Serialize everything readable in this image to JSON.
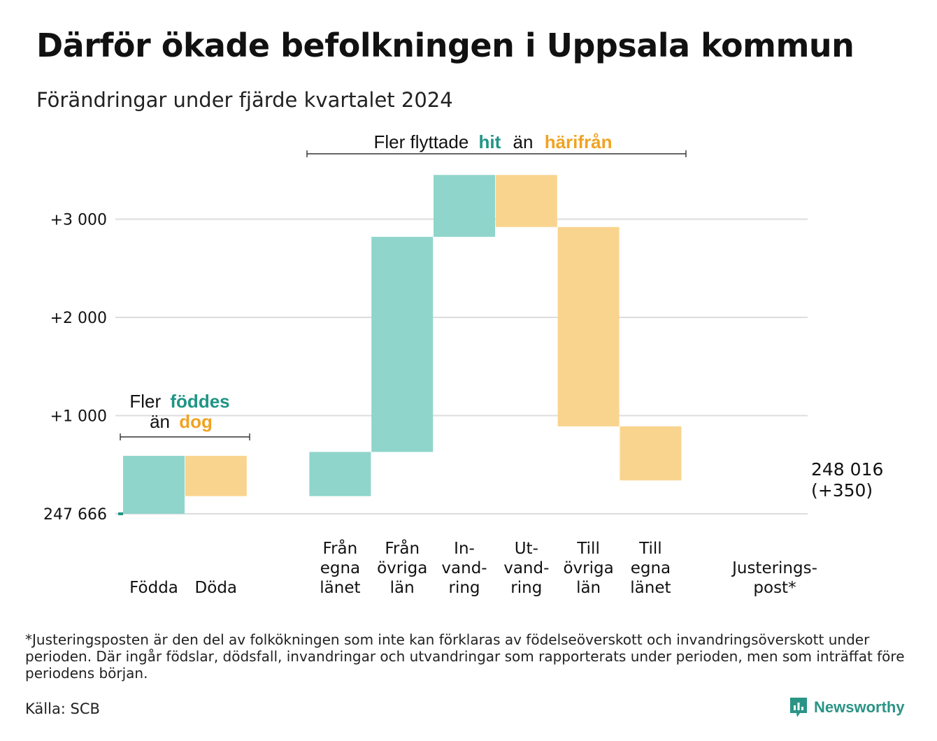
{
  "title": "Därför ökade befolkningen i Uppsala kommun",
  "subtitle": "Förändringar under fjärde kvartalet 2024",
  "colors": {
    "inflow_fill": "#8fd5cb",
    "outflow_fill": "#f9d48e",
    "line": "#1f9585",
    "inflow_text": "#1f9585",
    "outflow_text": "#f0a323",
    "gridline": "#dddddd"
  },
  "brackets": {
    "birth": {
      "line1_prefix": "Fler",
      "line1_highlight": "föddes",
      "line2_prefix": "än",
      "line2_highlight": "dog"
    },
    "migration": {
      "prefix": "Fler flyttade",
      "highlight_in": "hit",
      "middle": "än",
      "highlight_out": "härifrån"
    }
  },
  "chart_data": {
    "type": "waterfall",
    "baseline_label": "247 666",
    "start_value": 247666,
    "end_label_line1": "248 016",
    "end_label_line2": "(+350)",
    "y_ticks": [
      {
        "value": 1000,
        "label": "+1 000"
      },
      {
        "value": 2000,
        "label": "+2 000"
      },
      {
        "value": 3000,
        "label": "+3 000"
      }
    ],
    "ylim": [
      0,
      3450
    ],
    "categories": [
      {
        "label_lines": [
          "Födda"
        ],
        "change": 590,
        "kind": "in"
      },
      {
        "label_lines": [
          "Döda"
        ],
        "change": -410,
        "kind": "out"
      },
      {
        "label_lines": [],
        "change": 0,
        "kind": "gap"
      },
      {
        "label_lines": [
          "Från",
          "egna",
          "länet"
        ],
        "change": 450,
        "kind": "in"
      },
      {
        "label_lines": [
          "Från",
          "övriga",
          "län"
        ],
        "change": 2190,
        "kind": "in"
      },
      {
        "label_lines": [
          "In-",
          "vand-",
          "ring"
        ],
        "change": 630,
        "kind": "in"
      },
      {
        "label_lines": [
          "Ut-",
          "vand-",
          "ring"
        ],
        "change": -530,
        "kind": "out"
      },
      {
        "label_lines": [
          "Till",
          "övriga",
          "län"
        ],
        "change": -2030,
        "kind": "out"
      },
      {
        "label_lines": [
          "Till",
          "egna",
          "länet"
        ],
        "change": -550,
        "kind": "out"
      },
      {
        "label_lines": [],
        "change": 0,
        "kind": "gap"
      },
      {
        "label_lines": [
          "Justerings-",
          "post*"
        ],
        "change": 10,
        "kind": "adjust"
      }
    ]
  },
  "footnote": "*Justeringsposten är den del av folkökningen som inte kan förklaras av födelseöverskott och invandringsöverskott under perioden. Där ingår födslar, dödsfall, invandringar och utvandringar som rapporterats under perioden, men som inträffat före periodens början.",
  "source": "Källa: SCB",
  "brand": {
    "name": "Newsworthy",
    "icon": "newsworthy-logo-icon"
  }
}
